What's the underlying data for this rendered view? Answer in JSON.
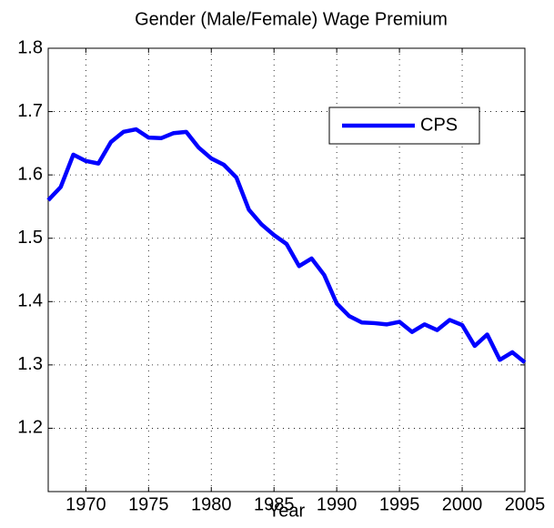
{
  "chart_data": {
    "type": "line",
    "title": "Gender (Male/Female) Wage Premium",
    "x_label": "Year",
    "x": [
      1967,
      1968,
      1969,
      1970,
      1971,
      1972,
      1973,
      1974,
      1975,
      1976,
      1977,
      1978,
      1979,
      1980,
      1981,
      1982,
      1983,
      1984,
      1985,
      1986,
      1987,
      1988,
      1989,
      1990,
      1991,
      1992,
      1993,
      1994,
      1995,
      1996,
      1997,
      1998,
      1999,
      2000,
      2001,
      2002,
      2003,
      2004,
      2005
    ],
    "series": [
      {
        "name": "CPS",
        "color": "#0000ff",
        "values": [
          1.56,
          1.581,
          1.632,
          1.622,
          1.618,
          1.652,
          1.668,
          1.672,
          1.659,
          1.658,
          1.666,
          1.668,
          1.643,
          1.626,
          1.616,
          1.596,
          1.545,
          1.522,
          1.505,
          1.491,
          1.456,
          1.468,
          1.442,
          1.397,
          1.377,
          1.367,
          1.366,
          1.364,
          1.368,
          1.352,
          1.364,
          1.355,
          1.371,
          1.363,
          1.33,
          1.348,
          1.308,
          1.32,
          1.304
        ]
      }
    ],
    "xlim": [
      1967,
      2005
    ],
    "xticks": [
      1970,
      1975,
      1980,
      1985,
      1990,
      1995,
      2000,
      2005
    ],
    "ylim": [
      1.1,
      1.8
    ],
    "yticks": [
      1.2,
      1.3,
      1.4,
      1.5,
      1.6,
      1.7,
      1.8
    ],
    "grid": true,
    "legend": "northeast"
  }
}
